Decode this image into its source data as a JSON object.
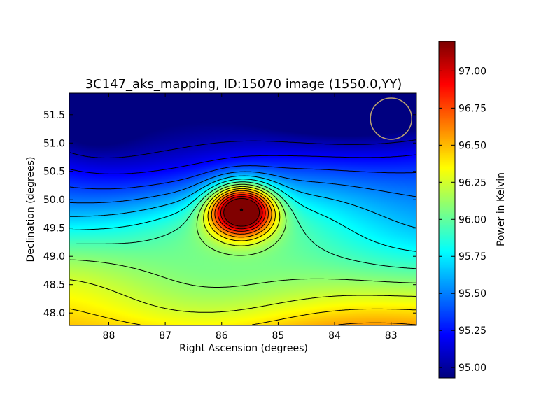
{
  "chart_data": {
    "type": "heatmap",
    "title": "3C147_aks_mapping, ID:15070 image (1550.0,YY)",
    "xlabel": "Right Ascension (degrees)",
    "ylabel": "Declination (degrees)",
    "xlim": [
      88.7,
      82.55
    ],
    "ylim": [
      47.78,
      51.88
    ],
    "x_ticks": [
      {
        "value": 88,
        "label": "88"
      },
      {
        "value": 87,
        "label": "87"
      },
      {
        "value": 86,
        "label": "86"
      },
      {
        "value": 85,
        "label": "85"
      },
      {
        "value": 84,
        "label": "84"
      },
      {
        "value": 83,
        "label": "83"
      }
    ],
    "y_ticks": [
      {
        "value": 48.0,
        "label": "48.0"
      },
      {
        "value": 48.5,
        "label": "48.5"
      },
      {
        "value": 49.0,
        "label": "49.0"
      },
      {
        "value": 49.5,
        "label": "49.5"
      },
      {
        "value": 50.0,
        "label": "50.0"
      },
      {
        "value": 50.5,
        "label": "50.5"
      },
      {
        "value": 51.0,
        "label": "51.0"
      },
      {
        "value": 51.5,
        "label": "51.5"
      }
    ],
    "colormap": "jet",
    "colorbar": {
      "label": "Power in Kelvin",
      "range": [
        94.93,
        97.2
      ],
      "ticks": [
        {
          "value": 95.0,
          "label": "95.00"
        },
        {
          "value": 95.25,
          "label": "95.25"
        },
        {
          "value": 95.5,
          "label": "95.50"
        },
        {
          "value": 95.75,
          "label": "95.75"
        },
        {
          "value": 96.0,
          "label": "96.00"
        },
        {
          "value": 96.25,
          "label": "96.25"
        },
        {
          "value": 96.5,
          "label": "96.50"
        },
        {
          "value": 96.75,
          "label": "96.75"
        },
        {
          "value": 97.0,
          "label": "97.00"
        }
      ]
    },
    "source_peak": {
      "ra": 85.65,
      "dec": 49.82,
      "value": 97.2
    },
    "contour_color": "#000000",
    "beam_circle": {
      "ra": 83.0,
      "dec": 51.43,
      "color": "#b8a070"
    }
  }
}
